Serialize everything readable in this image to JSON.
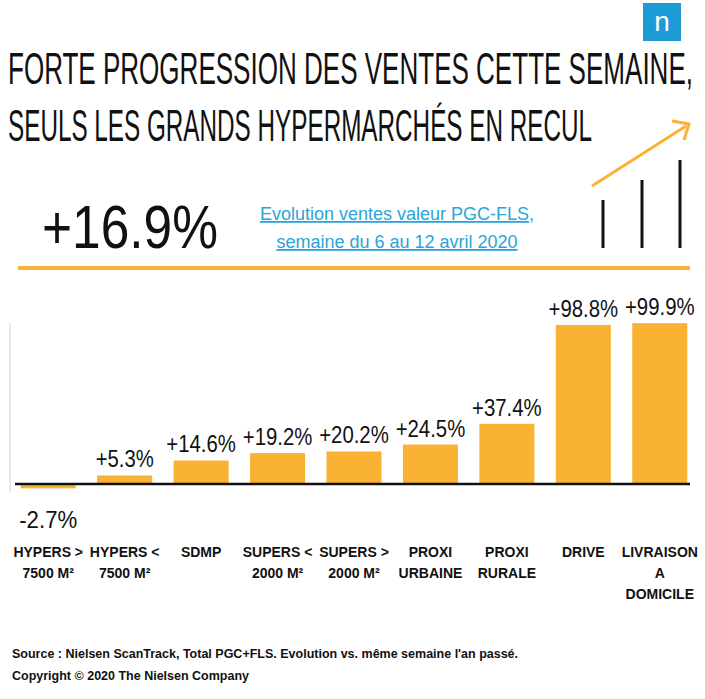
{
  "chart_data": {
    "type": "bar",
    "title": [
      "FORTE PROGRESSION DES VENTES CETTE SEMAINE,",
      "SEULS LES GRANDS HYPERMARCHÉS EN RECUL"
    ],
    "headline": "+16.9%",
    "subtitle": [
      "Evolution ventes valeur PGC-FLS,",
      "semaine du 6 au 12 avril 2020"
    ],
    "logo": "n",
    "categories": [
      "HYPERS >\n7500 M²",
      "HYPERS <\n7500 M²",
      "SDMP",
      "SUPERS <\n2000 M²",
      "SUPERS >\n2000 M²",
      "PROXI\nURBAINE",
      "PROXI\nRURALE",
      "DRIVE",
      "LIVRAISON\nA\nDOMICILE"
    ],
    "values": [
      -2.7,
      5.3,
      14.6,
      19.2,
      20.2,
      24.5,
      37.4,
      98.8,
      99.9
    ],
    "value_labels": [
      "-2.7%",
      "+5.3%",
      "+14.6%",
      "+19.2%",
      "+20.2%",
      "+24.5%",
      "+37.4%",
      "+98.8%",
      "+99.9%"
    ],
    "color": "#F9B234",
    "ylim": [
      -5,
      100
    ],
    "yticks": [
      0
    ],
    "grid": false,
    "data_labels": true,
    "tick_labels": "x",
    "source": "Source : Nielsen ScanTrack, Total PGC+FLS. Evolution vs. même semaine l'an passé.",
    "copyright": "Copyright © 2020 The Nielsen Company"
  }
}
